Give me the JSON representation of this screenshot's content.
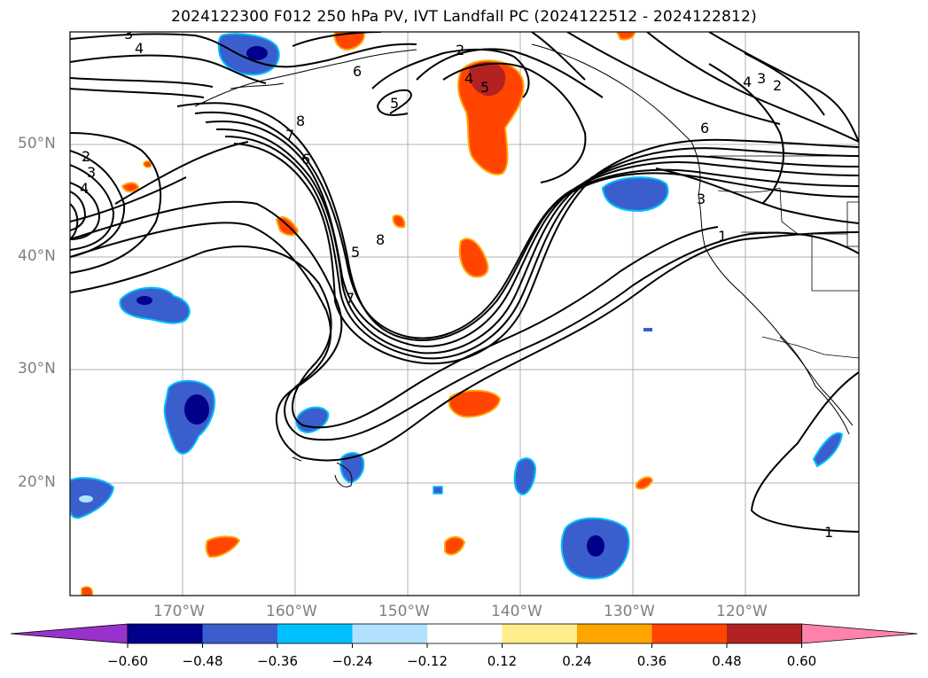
{
  "title": "2024122300 F012 250 hPa PV, IVT Landfall PC (2024122512 - 2024122812)",
  "lat_labels": [
    "50°N",
    "40°N",
    "30°N",
    "20°N"
  ],
  "lon_labels": [
    "170°W",
    "160°W",
    "150°W",
    "140°W",
    "130°W",
    "120°W"
  ],
  "colorbar": {
    "ticks": [
      "−0.60",
      "−0.48",
      "−0.36",
      "−0.24",
      "−0.12",
      "0.12",
      "0.24",
      "0.36",
      "0.48",
      "0.60"
    ],
    "colors": [
      "#9932cc",
      "#00008b",
      "#3a5fcd",
      "#00bfff",
      "#b0e2ff",
      "#ffffff",
      "#ffec8b",
      "#ffa500",
      "#ff4500",
      "#b22222",
      "#ff82ab"
    ]
  },
  "contour_labels": [
    "4",
    "3",
    "2",
    "1",
    "5",
    "6",
    "7",
    "8"
  ]
}
